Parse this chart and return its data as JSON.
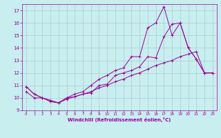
{
  "title": "",
  "xlabel": "Windchill (Refroidissement éolien,°C)",
  "ylabel": "",
  "background_color": "#c8eef0",
  "line_color": "#990099",
  "grid_color": "#aacccc",
  "xlim": [
    -0.5,
    23.5
  ],
  "ylim": [
    9,
    17.5
  ],
  "xticks": [
    0,
    1,
    2,
    3,
    4,
    5,
    6,
    7,
    8,
    9,
    10,
    11,
    12,
    13,
    14,
    15,
    16,
    17,
    18,
    19,
    20,
    21,
    22,
    23
  ],
  "yticks": [
    9,
    10,
    11,
    12,
    13,
    14,
    15,
    16,
    17
  ],
  "series": [
    {
      "x": [
        0,
        1,
        2,
        3,
        4,
        5,
        6,
        7,
        8,
        9,
        10,
        11,
        12,
        13,
        14,
        15,
        16,
        17,
        18,
        19,
        20,
        21,
        22,
        23
      ],
      "y": [
        10.9,
        10.3,
        10.0,
        9.8,
        9.6,
        10.0,
        10.3,
        10.5,
        11.0,
        11.5,
        11.8,
        12.2,
        12.4,
        13.3,
        13.3,
        15.6,
        16.0,
        17.3,
        15.0,
        16.0,
        14.0,
        13.1,
        12.0,
        12.0
      ]
    },
    {
      "x": [
        0,
        1,
        2,
        3,
        4,
        5,
        6,
        7,
        8,
        9,
        10,
        11,
        12,
        13,
        14,
        15,
        16,
        17,
        18,
        19,
        20,
        21,
        22,
        23
      ],
      "y": [
        10.9,
        10.3,
        10.0,
        9.8,
        9.6,
        10.0,
        10.1,
        10.3,
        10.4,
        11.0,
        11.1,
        11.8,
        12.0,
        12.2,
        12.5,
        13.3,
        13.2,
        14.9,
        15.9,
        16.0,
        14.0,
        13.1,
        12.0,
        12.0
      ]
    },
    {
      "x": [
        0,
        1,
        2,
        3,
        4,
        5,
        6,
        7,
        8,
        9,
        10,
        11,
        12,
        13,
        14,
        15,
        16,
        17,
        18,
        19,
        20,
        21,
        22,
        23
      ],
      "y": [
        10.5,
        10.0,
        10.0,
        9.7,
        9.6,
        9.9,
        10.1,
        10.3,
        10.5,
        10.8,
        11.0,
        11.3,
        11.5,
        11.8,
        12.0,
        12.3,
        12.6,
        12.8,
        13.0,
        13.3,
        13.5,
        13.7,
        12.0,
        12.0
      ]
    }
  ]
}
